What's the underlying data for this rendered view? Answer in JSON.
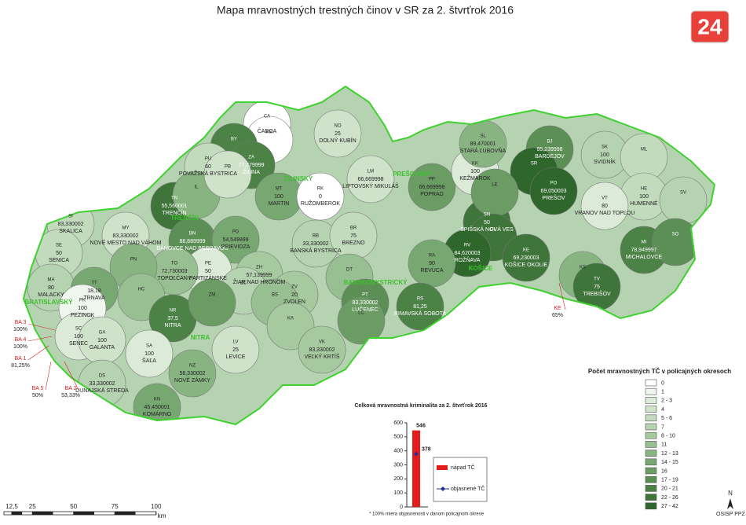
{
  "header": {
    "title": "Mapa mravnostných trestných činov v SR za 2. štvrťrok 2016",
    "logo": "24"
  },
  "map": {
    "outline_color": "#3fd12f",
    "districts": [
      {
        "code": "CA",
        "name": "ČADCA",
        "color": "#ffffff"
      },
      {
        "code": "KM",
        "color": "#ffffff"
      },
      {
        "code": "NO",
        "name": "DOLNÝ KUBÍN",
        "value": "25",
        "color": "#cfe3cb"
      },
      {
        "code": "BY",
        "color": "#4d8247"
      },
      {
        "code": "ZA",
        "name": "ŽILINA",
        "value": "77,779999",
        "color": "#4d8247"
      },
      {
        "code": "PU",
        "name": "POVAŽSKÁ BYSTRICA",
        "value": "60",
        "color": "#c2dbbd"
      },
      {
        "code": "MT",
        "name": "MARTIN",
        "value": "100",
        "color": "#78a872"
      },
      {
        "code": "RK",
        "name": "RUŽOMBEROK",
        "value": "0",
        "color": "#ffffff"
      },
      {
        "code": "LM",
        "name": "LIPTOVSKÝ MIKULÁŠ",
        "value": "66,669998",
        "color": "#cfe3cb"
      },
      {
        "code": "PP",
        "name": "POPRAD",
        "value": "66,669998",
        "color": "#6a9c64"
      },
      {
        "code": "KK",
        "name": "KEŽMAROK",
        "value": "100",
        "color": "#dcebd8"
      },
      {
        "code": "SL",
        "name": "STARÁ ĽUBOVŇA",
        "value": "89,470001",
        "color": "#88b482"
      },
      {
        "code": "BJ",
        "name": "BARDEJOV",
        "value": "95,239998",
        "color": "#5b8f55"
      },
      {
        "code": "SK",
        "name": "SVIDNÍK",
        "value": "100",
        "color": "#b5d3b0"
      },
      {
        "code": "ML",
        "color": "#c2dbbd"
      },
      {
        "code": "SR",
        "color": "#2f662c"
      },
      {
        "code": "PO",
        "name": "PREŠOV",
        "value": "69,050003",
        "color": "#2f662c"
      },
      {
        "code": "HE",
        "name": "HUMENNÉ",
        "value": "100",
        "color": "#c2dbbd"
      },
      {
        "code": "VT",
        "name": "VRANOV NAD TOPĽOU",
        "value": "80",
        "color": "#dcebd8"
      },
      {
        "code": "SV",
        "color": "#b5d3b0"
      },
      {
        "code": "SN",
        "name": "SPIŠSKÁ NOVÁ VES",
        "value": "50",
        "color": "#3f753a"
      },
      {
        "code": "LE",
        "color": "#6a9c64"
      },
      {
        "code": "GL",
        "color": "#3f753a"
      },
      {
        "code": "RV",
        "name": "ROŽŇAVA",
        "value": "84,620003",
        "color": "#2f662c"
      },
      {
        "code": "KE",
        "name": "KOŠICE OKOLIE",
        "value": "69,230003",
        "color": "#3f753a"
      },
      {
        "code": "KS",
        "color": "#88b482"
      },
      {
        "code": "MI",
        "name": "MICHALOVCE",
        "value": "78,949997",
        "color": "#4d8247"
      },
      {
        "code": "SO",
        "color": "#5b8f55"
      },
      {
        "code": "TV",
        "name": "TREBIŠOV",
        "value": "75",
        "color": "#3f753a"
      },
      {
        "code": "TN",
        "name": "TRENČÍN",
        "value": "55,560001",
        "color": "#3f753a"
      },
      {
        "code": "IL",
        "color": "#88b482"
      },
      {
        "code": "PB",
        "color": "#cfe3cb"
      },
      {
        "code": "BN",
        "name": "BÁNOVCE NAD BEBRAVOU",
        "value": "88,889999",
        "color": "#5b8f55"
      },
      {
        "code": "PD",
        "name": "PRIEVIDZA",
        "value": "54,549999",
        "color": "#78a872"
      },
      {
        "code": "MY",
        "name": "NOVÉ MESTO NAD VÁHOM",
        "value": "83,330002",
        "color": "#cfe3cb"
      },
      {
        "code": "SI",
        "name": "SKALICA",
        "value": "83,330002",
        "color": "#c2dbbd"
      },
      {
        "code": "SE",
        "name": "SENICA",
        "value": "50",
        "color": "#c2dbbd"
      },
      {
        "code": "MA",
        "name": "MALACKY",
        "value": "80",
        "color": "#b5d3b0"
      },
      {
        "code": "PE",
        "name": "PARTIZÁNSKE",
        "value": "50",
        "color": "#dcebd8"
      },
      {
        "code": "TO",
        "name": "TOPOĽČANY",
        "value": "72,730003",
        "color": "#97bf91"
      },
      {
        "code": "ZH",
        "name": "ŽIAR NAD HRONOM",
        "value": "57,139999",
        "color": "#a6c9a0"
      },
      {
        "code": "BB",
        "name": "BANSKÁ BYSTRICA",
        "value": "33,330002",
        "color": "#b5d3b0"
      },
      {
        "code": "BR",
        "name": "BREZNO",
        "value": "75",
        "color": "#c2dbbd"
      },
      {
        "code": "RA",
        "name": "REVÚCA",
        "value": "90",
        "color": "#78a872"
      },
      {
        "code": "ZV",
        "name": "ZVOLEN",
        "value": "20",
        "color": "#a6c9a0"
      },
      {
        "code": "DT",
        "color": "#97bf91"
      },
      {
        "code": "PT",
        "name": "LUČENEC",
        "value": "83,330002",
        "color": "#5b8f55"
      },
      {
        "code": "RS",
        "name": "RIMAVSKÁ SOBOTA",
        "value": "81,25",
        "color": "#4d8247"
      },
      {
        "code": "ZC",
        "color": "#b5d3b0"
      },
      {
        "code": "BS",
        "color": "#97bf91"
      },
      {
        "code": "KA",
        "color": "#a6c9a0"
      },
      {
        "code": "VK",
        "name": "VEĽKÝ KRTÍŠ",
        "value": "83,330002",
        "color": "#a6c9a0"
      },
      {
        "code": "LC",
        "color": "#6a9c64"
      },
      {
        "code": "PN",
        "color": "#88b482"
      },
      {
        "code": "TT",
        "name": "TRNAVA",
        "value": "18,18",
        "color": "#78a872"
      },
      {
        "code": "HC",
        "color": "#97bf91"
      },
      {
        "code": "PK",
        "name": "PEZINOK",
        "value": "100",
        "color": "#eef6ee"
      },
      {
        "code": "NR",
        "name": "NITRA",
        "value": "37,5",
        "color": "#4d8247"
      },
      {
        "code": "ZM",
        "color": "#6a9c64"
      },
      {
        "code": "LV",
        "name": "LEVICE",
        "value": "25",
        "color": "#cfe3cb"
      },
      {
        "code": "SC",
        "name": "SENEC",
        "value": "100",
        "color": "#dcebd8"
      },
      {
        "code": "GA",
        "name": "GALANTA",
        "value": "100",
        "color": "#cfe3cb"
      },
      {
        "code": "SA",
        "name": "ŠAĽA",
        "value": "100",
        "color": "#dcebd8"
      },
      {
        "code": "NZ",
        "name": "NOVÉ ZÁMKY",
        "value": "58,330002",
        "color": "#88b482"
      },
      {
        "code": "DS",
        "name": "DUNAJSKÁ STREDA",
        "value": "33,330002",
        "color": "#b5d3b0"
      },
      {
        "code": "KN",
        "name": "KOMÁRNO",
        "value": "45,450001",
        "color": "#78a872"
      }
    ],
    "regions": [
      "TRENČÍN",
      "ŽILINSKÝ",
      "PREŠOVSKÝ",
      "KOŠICE",
      "BRATISLAVSKÝ",
      "NITRA",
      "BANSKOBYSTRICKÝ"
    ],
    "callouts": [
      {
        "label": "BA 3",
        "value": "100%"
      },
      {
        "label": "BA 4",
        "value": "100%"
      },
      {
        "label": "BA 1",
        "value": "81,25%"
      },
      {
        "label": "BA 5",
        "value": "50%"
      },
      {
        "label": "BA 2",
        "value": "53,33%"
      },
      {
        "label": "KE",
        "value": "65%"
      }
    ]
  },
  "legend": {
    "title": "Počet mravnostných TČ v policajných okresoch",
    "items": [
      {
        "label": "0",
        "color": "#ffffff"
      },
      {
        "label": "1",
        "color": "#eef6ee"
      },
      {
        "label": "2 - 3",
        "color": "#dcebd8"
      },
      {
        "label": "4",
        "color": "#cfe3cb"
      },
      {
        "label": "5 - 6",
        "color": "#c2dbbd"
      },
      {
        "label": "7",
        "color": "#b5d3b0"
      },
      {
        "label": "8 - 10",
        "color": "#a6c9a0"
      },
      {
        "label": "11",
        "color": "#97bf91"
      },
      {
        "label": "12 - 13",
        "color": "#88b482"
      },
      {
        "label": "14 - 15",
        "color": "#78a872"
      },
      {
        "label": "16",
        "color": "#6a9c64"
      },
      {
        "label": "17 - 19",
        "color": "#5b8f55"
      },
      {
        "label": "20 - 21",
        "color": "#4d8247"
      },
      {
        "label": "22 - 26",
        "color": "#3f753a"
      },
      {
        "label": "27 - 42",
        "color": "#2f662c"
      }
    ]
  },
  "chart_data": {
    "type": "bar",
    "title": "Celková mravnostná kriminalita za 2. štvrťrok 2016",
    "series": [
      {
        "name": "nápad TČ",
        "color": "#e21b1b",
        "values": [
          546
        ]
      },
      {
        "name": "objasnené TČ",
        "color": "#1f2fa0",
        "values": [
          378
        ]
      }
    ],
    "ylim": [
      0,
      600
    ],
    "yticks": [
      0,
      100,
      200,
      300,
      400,
      500,
      600
    ]
  },
  "scale": {
    "ticks": [
      {
        "value": 12.5,
        "label": "12,5"
      },
      25,
      50,
      75,
      100
    ],
    "unit": "km"
  },
  "footnote": "* 100%  miera objasnenosti v danom policajnom okrese",
  "source": "OSISP PPZ",
  "north": "N"
}
